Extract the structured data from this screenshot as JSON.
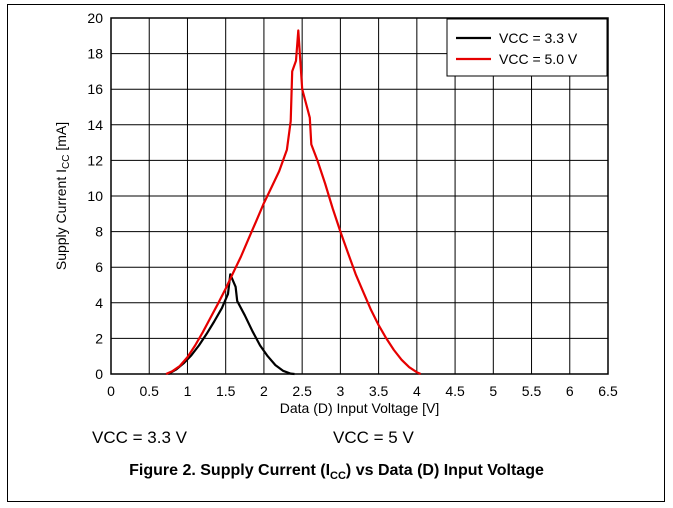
{
  "chart_data": {
    "type": "line",
    "title": "",
    "xlabel": "Data (D) Input Voltage [V]",
    "ylabel_main": "Supply Current I",
    "ylabel_sub": "CC",
    "ylabel_tail": " [mA]",
    "xlim": [
      0,
      6.5
    ],
    "ylim": [
      0,
      20
    ],
    "x_ticks": [
      "0",
      "0.5",
      "1",
      "1.5",
      "2",
      "2.5",
      "3",
      "3.5",
      "4",
      "4.5",
      "5",
      "5.5",
      "6",
      "6.5"
    ],
    "y_ticks": [
      "0",
      "2",
      "4",
      "6",
      "8",
      "10",
      "12",
      "14",
      "16",
      "18",
      "20"
    ],
    "grid": true,
    "legend_position": "top-right",
    "series": [
      {
        "name": "VCC = 3.3 V",
        "color": "#000000",
        "points": [
          [
            0.75,
            0.0
          ],
          [
            0.85,
            0.25
          ],
          [
            0.95,
            0.6
          ],
          [
            1.05,
            1.05
          ],
          [
            1.15,
            1.6
          ],
          [
            1.25,
            2.25
          ],
          [
            1.35,
            2.95
          ],
          [
            1.45,
            3.7
          ],
          [
            1.53,
            4.5
          ],
          [
            1.56,
            5.6
          ],
          [
            1.6,
            5.2
          ],
          [
            1.63,
            4.9
          ],
          [
            1.65,
            4.1
          ],
          [
            1.75,
            3.3
          ],
          [
            1.85,
            2.4
          ],
          [
            1.95,
            1.6
          ],
          [
            2.05,
            1.0
          ],
          [
            2.15,
            0.5
          ],
          [
            2.25,
            0.18
          ],
          [
            2.35,
            0.02
          ],
          [
            2.4,
            0.0
          ]
        ]
      },
      {
        "name": "VCC = 5.0 V",
        "color": "#e60000",
        "points": [
          [
            0.72,
            0.0
          ],
          [
            0.8,
            0.15
          ],
          [
            0.9,
            0.45
          ],
          [
            1.0,
            0.95
          ],
          [
            1.1,
            1.6
          ],
          [
            1.2,
            2.35
          ],
          [
            1.3,
            3.15
          ],
          [
            1.4,
            3.95
          ],
          [
            1.5,
            4.8
          ],
          [
            1.6,
            5.7
          ],
          [
            1.7,
            6.6
          ],
          [
            1.8,
            7.6
          ],
          [
            1.9,
            8.6
          ],
          [
            2.0,
            9.6
          ],
          [
            2.1,
            10.5
          ],
          [
            2.2,
            11.4
          ],
          [
            2.3,
            12.6
          ],
          [
            2.35,
            14.2
          ],
          [
            2.37,
            17.0
          ],
          [
            2.42,
            17.6
          ],
          [
            2.45,
            19.3
          ],
          [
            2.5,
            16.0
          ],
          [
            2.55,
            15.2
          ],
          [
            2.6,
            14.4
          ],
          [
            2.62,
            12.9
          ],
          [
            2.7,
            12.0
          ],
          [
            2.8,
            10.7
          ],
          [
            2.9,
            9.3
          ],
          [
            3.0,
            8.0
          ],
          [
            3.1,
            6.8
          ],
          [
            3.2,
            5.6
          ],
          [
            3.3,
            4.6
          ],
          [
            3.4,
            3.6
          ],
          [
            3.5,
            2.75
          ],
          [
            3.6,
            2.0
          ],
          [
            3.7,
            1.35
          ],
          [
            3.8,
            0.8
          ],
          [
            3.9,
            0.38
          ],
          [
            4.0,
            0.1
          ],
          [
            4.05,
            0.0
          ]
        ]
      }
    ]
  },
  "conditions": {
    "left": "VCC = 3.3 V",
    "right": "VCC = 5 V"
  },
  "caption": {
    "prefix": "Figure 2. Supply Current (I",
    "sub": "CC",
    "suffix": ") vs Data (D) Input Voltage"
  }
}
